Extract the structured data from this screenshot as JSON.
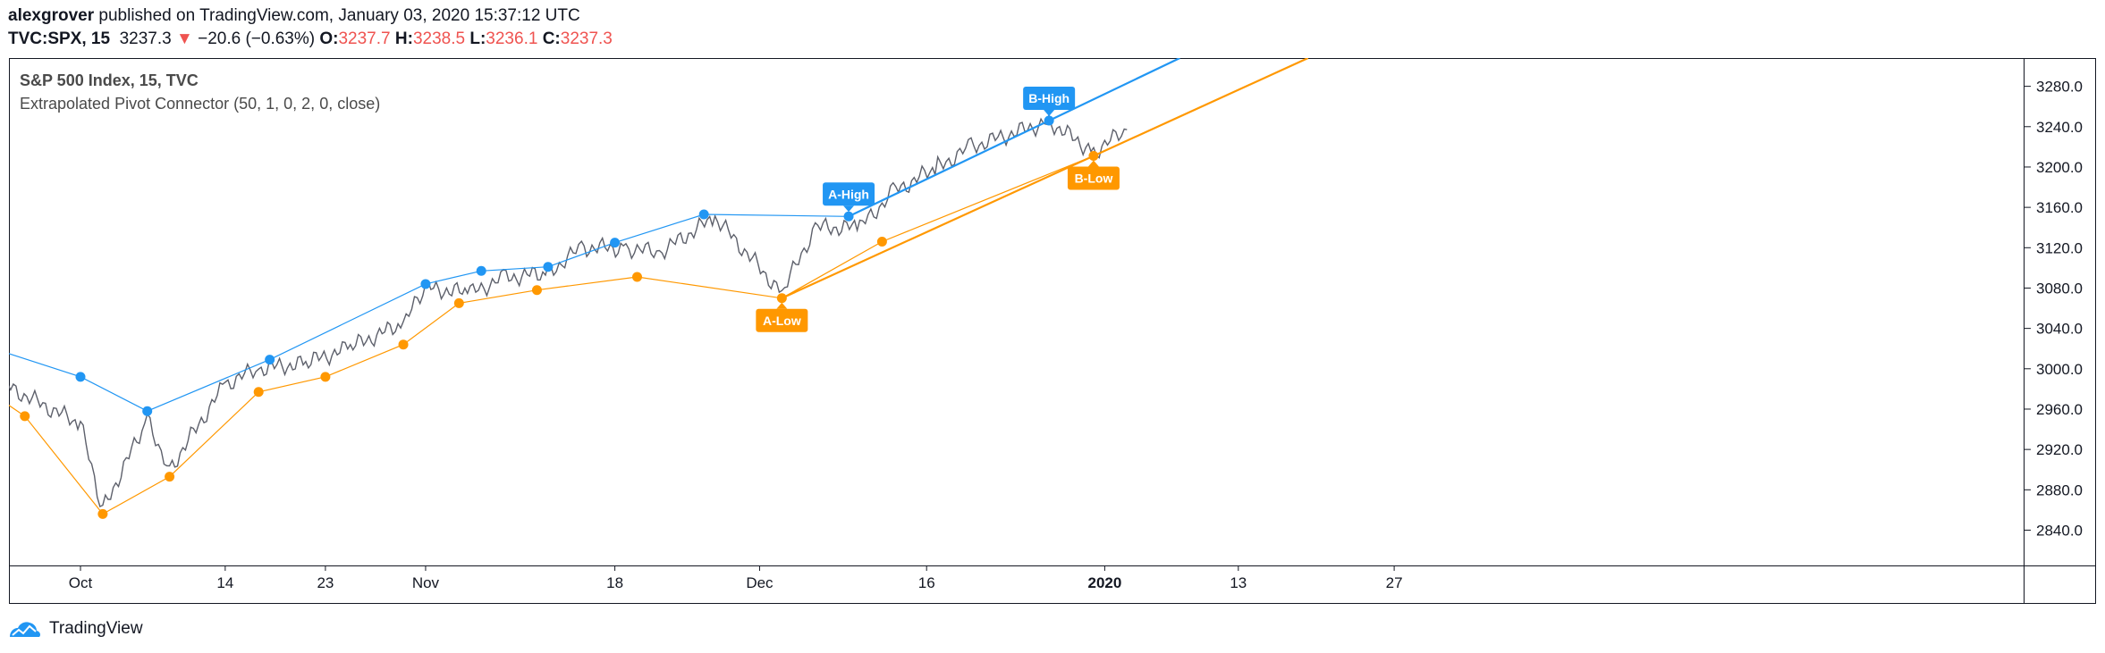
{
  "header": {
    "author": "alexgrover",
    "published_text": "published on TradingView.com, January 03, 2020 15:37:12 UTC",
    "symbol": "TVC:SPX, 15",
    "last": "3237.3",
    "change": "−20.6 (−0.63%)",
    "open_label": "O:",
    "open": "3237.7",
    "high_label": "H:",
    "high": "3238.5",
    "low_label": "L:",
    "low": "3236.1",
    "close_label": "C:",
    "close": "3237.3",
    "down_arrow_icon": "triangle-down-icon"
  },
  "legend": {
    "title": "S&P 500 Index, 15, TVC",
    "indicator": "Extrapolated Pivot Connector (50, 1, 0, 2, 0, close)"
  },
  "footer": {
    "brand": "TradingView",
    "logo_icon": "tradingview-cloud-icon"
  },
  "colors": {
    "high": "#2196f3",
    "low": "#ff9800",
    "price": "#5d606b",
    "red": "#ef5350"
  },
  "chart_data": {
    "type": "line",
    "ylim": [
      2805,
      3308
    ],
    "y_ticks": [
      "3280.0",
      "3240.0",
      "3200.0",
      "3160.0",
      "3120.0",
      "3080.0",
      "3040.0",
      "3000.0",
      "2960.0",
      "2920.0",
      "2880.0",
      "2840.0"
    ],
    "x_ticks": [
      "Oct",
      "14",
      "23",
      "Nov",
      "18",
      "Dec",
      "16",
      "2020",
      "13",
      "27"
    ],
    "series": [
      {
        "x": [
          "Sep 24",
          "Oct 1",
          "Oct 3",
          "Oct 7",
          "Oct 9",
          "Oct 14",
          "Oct 17",
          "Oct 21",
          "Oct 25",
          "Oct 30",
          "Nov 1",
          "Nov 5",
          "Nov 8",
          "Nov 12",
          "Nov 15",
          "Nov 19",
          "Nov 22",
          "Nov 27",
          "Dec 3",
          "Dec 6",
          "Dec 10",
          "Dec 13",
          "Dec 17",
          "Dec 20",
          "Dec 27",
          "Dec 31",
          "Jan 3"
        ],
        "values": [
          2985,
          2945,
          2860,
          2950,
          2900,
          2985,
          3000,
          3005,
          3020,
          3045,
          3080,
          3075,
          3090,
          3095,
          3120,
          3120,
          3115,
          3150,
          3075,
          3140,
          3140,
          3175,
          3200,
          3220,
          3245,
          3215,
          3237
        ]
      },
      {
        "name": "pivot-highs",
        "x": [
          "Sep 24",
          "Oct 1",
          "Oct 7",
          "Oct 18",
          "Nov 1",
          "Nov 6",
          "Nov 12",
          "Nov 18",
          "Nov 26",
          "Dec 9",
          "Dec 27"
        ],
        "values": [
          3017,
          2992,
          2958,
          3009,
          3084,
          3097,
          3101,
          3125,
          3153,
          3151,
          3246
        ]
      },
      {
        "name": "pivot-lows",
        "x": [
          "Sep 24",
          "Sep 26",
          "Oct 3",
          "Oct 9",
          "Oct 17",
          "Oct 23",
          "Oct 30",
          "Nov 4",
          "Nov 11",
          "Nov 20",
          "Dec 3",
          "Dec 12",
          "Dec 31"
        ],
        "values": [
          2968,
          2953,
          2856,
          2893,
          2977,
          2992,
          3024,
          3065,
          3078,
          3091,
          3070,
          3126,
          3211
        ]
      }
    ],
    "extrapolations": [
      {
        "name": "A-High to B-High",
        "x": [
          "Dec 9",
          "Dec 27"
        ],
        "values": [
          3151,
          3246
        ]
      },
      {
        "name": "A-Low to B-Low",
        "x": [
          "Dec 3",
          "Dec 31"
        ],
        "values": [
          3070,
          3211
        ]
      }
    ],
    "annotations": [
      {
        "label": "A-High",
        "kind": "high",
        "x": "Dec 9",
        "value": 3151
      },
      {
        "label": "B-High",
        "kind": "high",
        "x": "Dec 27",
        "value": 3246
      },
      {
        "label": "A-Low",
        "kind": "low",
        "x": "Dec 3",
        "value": 3070
      },
      {
        "label": "B-Low",
        "kind": "low",
        "x": "Dec 31",
        "value": 3211
      }
    ],
    "grid": false
  }
}
